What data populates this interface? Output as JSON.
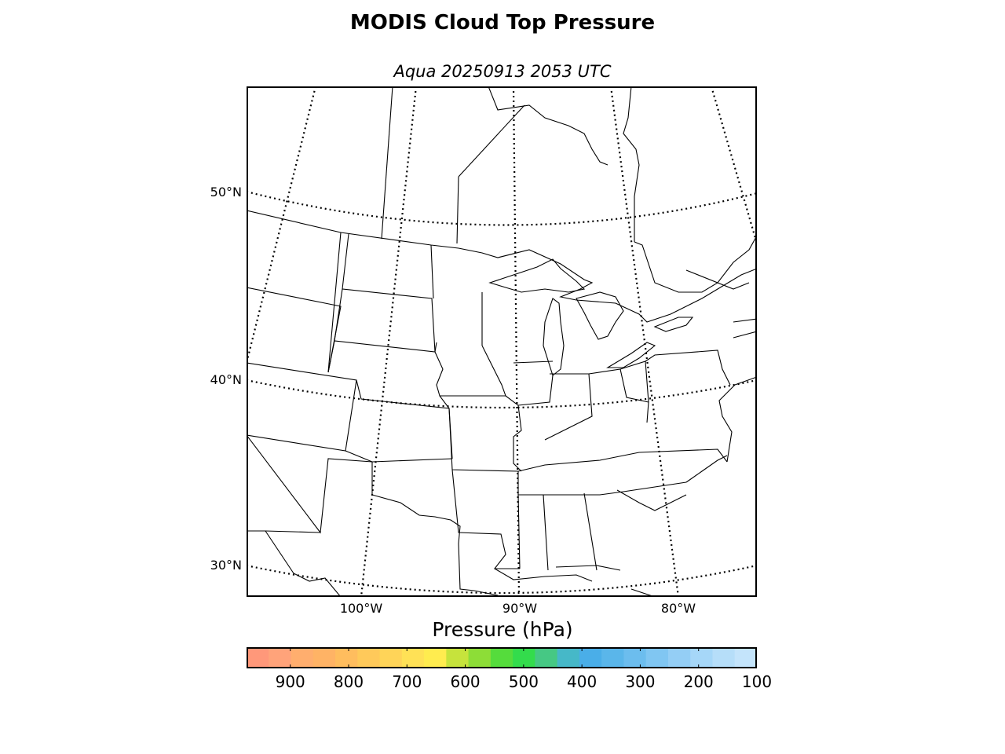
{
  "title": "MODIS Cloud Top Pressure",
  "subtitle": "Aqua 20250913 2053 UTC",
  "map": {
    "lat_labels": [
      "50°N",
      "40°N",
      "30°N"
    ],
    "lon_labels": [
      "100°W",
      "90°W",
      "80°W"
    ]
  },
  "colorbar": {
    "label": "Pressure (hPa)",
    "ticks": [
      "900",
      "800",
      "700",
      "600",
      "500",
      "400",
      "300",
      "200",
      "100"
    ],
    "range": [
      975,
      100
    ],
    "colors": [
      "#ff987a",
      "#ffa37a",
      "#ffae6e",
      "#ffb365",
      "#ffbd5e",
      "#ffc95a",
      "#ffd458",
      "#ffe156",
      "#ffec4f",
      "#c6e33c",
      "#8ddd37",
      "#55dc3c",
      "#33dc4c",
      "#46c884",
      "#46b8c8",
      "#4aaee8",
      "#5ab6ea",
      "#6cbdee",
      "#80c6f2",
      "#94cef5",
      "#a6d7f8",
      "#b6def9",
      "#c4e4fb"
    ]
  }
}
